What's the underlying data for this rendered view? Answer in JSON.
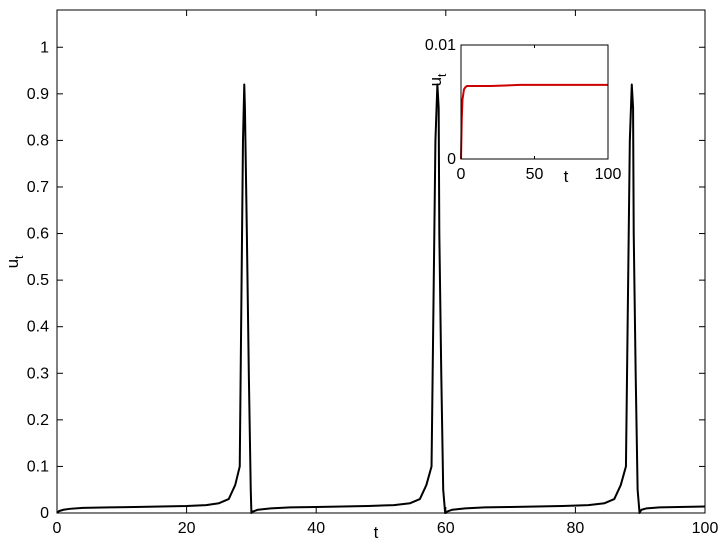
{
  "chart_data": [
    {
      "type": "line",
      "xlabel": "t",
      "ylabel": "u",
      "ylabel_subscript": "t",
      "xlim": [
        0,
        100
      ],
      "ylim": [
        0,
        1.08
      ],
      "xticks": [
        "0",
        "20",
        "40",
        "60",
        "80",
        "100"
      ],
      "yticks": [
        "0",
        "0.1",
        "0.2",
        "0.3",
        "0.4",
        "0.5",
        "0.6",
        "0.7",
        "0.8",
        "0.9",
        "1"
      ],
      "grid": false,
      "legend": "none",
      "series": [
        {
          "color": "#000000",
          "x": [
            0,
            0.3,
            1,
            2,
            4,
            8,
            12,
            16,
            20,
            23,
            25,
            26.5,
            27.5,
            28.2,
            28.7,
            28.9,
            29.0,
            29.3,
            29.6,
            29.9,
            30.0,
            30.2,
            31,
            33,
            36,
            40,
            44,
            48,
            52,
            54.5,
            56,
            57,
            57.8,
            58.4,
            58.7,
            58.9,
            59.0,
            59.3,
            59.6,
            59.9,
            60.0,
            60.2,
            61,
            63,
            66,
            70,
            74,
            78,
            82,
            84.5,
            86,
            87,
            87.8,
            88.4,
            88.7,
            88.9,
            89.0,
            89.3,
            89.6,
            89.9,
            90.0,
            90.2,
            91,
            93,
            96,
            100
          ],
          "y": [
            0,
            0.004,
            0.007,
            0.009,
            0.011,
            0.012,
            0.013,
            0.014,
            0.015,
            0.017,
            0.021,
            0.03,
            0.06,
            0.1,
            0.8,
            0.92,
            0.87,
            0.6,
            0.3,
            0.05,
            0,
            0.003,
            0.007,
            0.01,
            0.012,
            0.013,
            0.014,
            0.015,
            0.017,
            0.021,
            0.03,
            0.06,
            0.1,
            0.8,
            0.92,
            0.87,
            0.6,
            0.3,
            0.05,
            0,
            0,
            0.003,
            0.007,
            0.01,
            0.012,
            0.013,
            0.014,
            0.015,
            0.017,
            0.021,
            0.03,
            0.06,
            0.1,
            0.8,
            0.92,
            0.87,
            0.6,
            0.3,
            0.05,
            0,
            0.003,
            0.007,
            0.01,
            0.012,
            0.013,
            0.014
          ]
        }
      ]
    },
    {
      "type": "line",
      "xlabel": "t",
      "ylabel": "u",
      "ylabel_subscript": "t",
      "xlim": [
        0,
        100
      ],
      "ylim": [
        0,
        0.01
      ],
      "xticks": [
        "0",
        "50",
        "100"
      ],
      "yticks": [
        "0",
        "0.01"
      ],
      "grid": false,
      "legend": "none",
      "series": [
        {
          "color": "#cc0000",
          "x": [
            0,
            0.5,
            1,
            2,
            3,
            4,
            6,
            10,
            20,
            40,
            60,
            80,
            100
          ],
          "y": [
            0,
            0.0035,
            0.0052,
            0.0061,
            0.0063,
            0.0064,
            0.0064,
            0.0064,
            0.0064,
            0.0065,
            0.0065,
            0.0065,
            0.0065
          ]
        }
      ]
    }
  ]
}
